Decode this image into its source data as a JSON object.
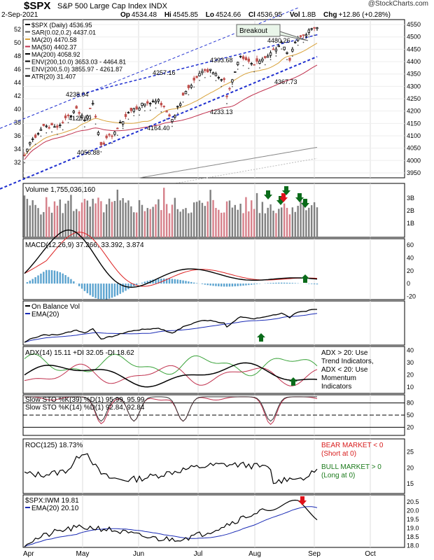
{
  "header": {
    "symbol": "$SPX",
    "name": "S&P 500 Large Cap Index",
    "exchange": "INDX",
    "date": "2-Sep-2021",
    "open_label": "Op",
    "open": "4534.48",
    "high_label": "Hi",
    "high": "4545.85",
    "low_label": "Lo",
    "low": "4524.66",
    "close_label": "Cl",
    "close": "4536.95",
    "vol_label": "Vol",
    "vol": "1.8B",
    "chg_label": "Chg",
    "chg": "+12.86 (+0.28%)",
    "watermark": "@StockCharts.com"
  },
  "colors": {
    "up": "#000000",
    "down": "#c0504d",
    "ma20": "#d8a23a",
    "ma50": "#c0304d",
    "ma200": "#222222",
    "trend": "#1f2fd0",
    "volume_up": "#808080",
    "volume_down": "#d6808a",
    "macd_hist": "#5ba3cf",
    "arrow_green": "#0a6b1a",
    "arrow_red": "#e0101a"
  },
  "x_axis": {
    "labels": [
      "Apr",
      "May",
      "Jun",
      "Jul",
      "Aug",
      "Sep",
      "Oct"
    ]
  },
  "chart_data": [
    {
      "type": "candlestick",
      "title": "$SPX (Daily) 4536.95",
      "legend": [
        "$SPX (Daily) 4536.95",
        "SAR(0.02,0.2) 4437.01",
        "MA(20) 4470.58",
        "MA(50) 4402.37",
        "MA(200) 4058.92",
        "ENV(200,10.0) 3653.03 - 4464.81",
        "ENV(200,5.0) 3855.97 - 4261.87",
        "ATR(20) 31.407"
      ],
      "y_left_ticks": [
        "52",
        "50",
        "48",
        "46",
        "44",
        "42",
        "40",
        "38",
        "36",
        "34",
        "32"
      ],
      "y_right_ticks": [
        "4550",
        "4500",
        "4450",
        "4400",
        "4350",
        "4300",
        "4250",
        "4200",
        "4150",
        "4100",
        "4050",
        "4000",
        "3950"
      ],
      "ylim": [
        3930,
        4570
      ],
      "annotations": [
        "4238.04",
        "4128.59",
        "4056.88",
        "4257.16",
        "4164.40",
        "4393.68",
        "4233.13",
        "4480.26",
        "4367.73",
        "Breakout"
      ],
      "close_anchors": [
        [
          "2021-04-01",
          4019
        ],
        [
          "2021-04-06",
          4073
        ],
        [
          "2021-04-13",
          4141
        ],
        [
          "2021-04-20",
          4134
        ],
        [
          "2021-04-29",
          4211
        ],
        [
          "2021-05-04",
          4164
        ],
        [
          "2021-05-07",
          4232
        ],
        [
          "2021-05-12",
          4063
        ],
        [
          "2021-05-19",
          4115
        ],
        [
          "2021-05-26",
          4195
        ],
        [
          "2021-06-04",
          4229
        ],
        [
          "2021-06-11",
          4247
        ],
        [
          "2021-06-18",
          4166
        ],
        [
          "2021-06-25",
          4280
        ],
        [
          "2021-07-02",
          4352
        ],
        [
          "2021-07-09",
          4369
        ],
        [
          "2021-07-16",
          4327
        ],
        [
          "2021-07-19",
          4258
        ],
        [
          "2021-07-26",
          4422
        ],
        [
          "2021-08-02",
          4387
        ],
        [
          "2021-08-10",
          4436
        ],
        [
          "2021-08-16",
          4479
        ],
        [
          "2021-08-19",
          4405
        ],
        [
          "2021-08-23",
          4479
        ],
        [
          "2021-08-27",
          4509
        ],
        [
          "2021-08-30",
          4528
        ],
        [
          "2021-09-02",
          4537
        ]
      ]
    },
    {
      "type": "bar",
      "title": "Volume 1,755,036,160",
      "y_ticks": [
        "3B",
        "2B",
        "1B"
      ],
      "ylim": [
        0,
        3.6
      ]
    },
    {
      "type": "line",
      "title": "MACD(12,26,9) 37.266, 33.392, 3.874",
      "y_ticks": [
        "60",
        "40",
        "20",
        "0",
        "-20"
      ],
      "ylim": [
        -25,
        70
      ]
    },
    {
      "type": "line",
      "title": "On Balance Vol",
      "series_names": [
        "EMA(20)"
      ]
    },
    {
      "type": "line",
      "title": "ADX(14) 15.11 +DI 32.05 -DI 18.62",
      "y_ticks": [
        "40",
        "30",
        "20",
        "10"
      ],
      "ylim": [
        5,
        43
      ],
      "note": "ADX > 20: Use Trend Indicators, ADX < 20: Use Momentum Indicators"
    },
    {
      "type": "line",
      "title": "Slow STO %K(39) %D(1) 95.99, 95.99",
      "title2": "Slow STO %K(14) %D(1) 92.84, 92.84",
      "y_ticks": [
        "80",
        "50",
        "20"
      ],
      "ylim": [
        0,
        100
      ]
    },
    {
      "type": "line",
      "title": "ROC(125) 18.73%",
      "y_ticks": [
        "25",
        "20",
        "15"
      ],
      "ylim": [
        12,
        29
      ],
      "bear_note": "BEAR MARKET < 0 (Short at 0)",
      "bull_note": "BULL MARKET > 0 (Long at 0)"
    },
    {
      "type": "line",
      "title": "$SPX:IWM 19.81",
      "series_names": [
        "EMA(20) 20.10"
      ],
      "y_ticks": [
        "20.5",
        "20.0",
        "19.5",
        "19.0",
        "18.5",
        "18.0"
      ],
      "ylim": [
        17.9,
        20.9
      ]
    }
  ]
}
